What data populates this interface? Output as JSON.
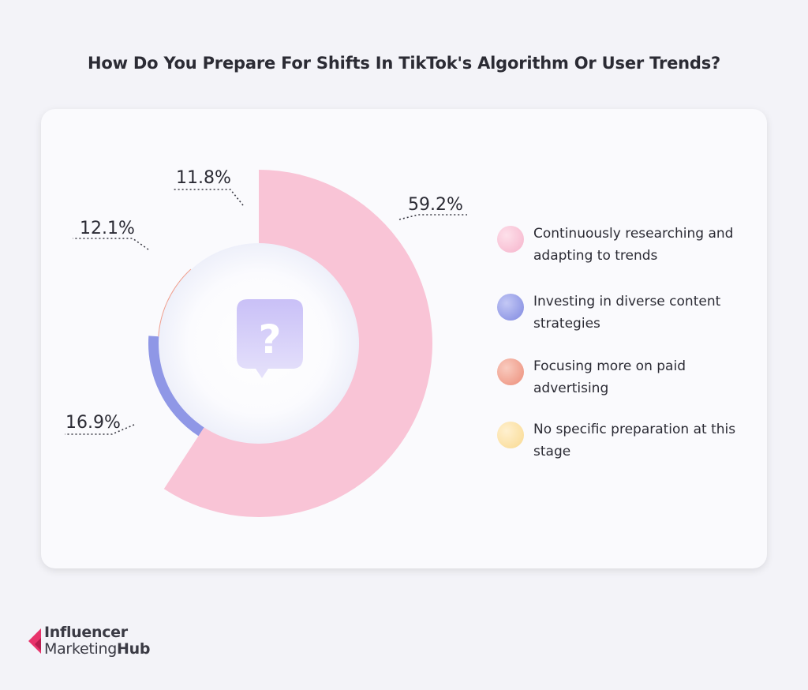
{
  "title": "How Do You Prepare For Shifts In TikTok's Algorithm Or User Trends?",
  "chart_data": {
    "type": "pie",
    "variant": "donut",
    "title": "How Do You Prepare For Shifts In TikTok's Algorithm Or User Trends?",
    "series": [
      {
        "name": "Continuously researching and adapting to trends",
        "value": 59.2,
        "label": "59.2%",
        "color": "#f9c4d6"
      },
      {
        "name": "Investing in diverse content strategies",
        "value": 16.9,
        "label": "16.9%",
        "color": "#8f97e6"
      },
      {
        "name": "Focusing more on paid advertising",
        "value": 12.1,
        "label": "12.1%",
        "color": "#f0a08f"
      },
      {
        "name": "No specific preparation at this stage",
        "value": 11.8,
        "label": "11.8%",
        "color": "#fbe0a6"
      }
    ],
    "center_icon": "question-mark-icon",
    "legend_position": "right"
  },
  "legend": [
    {
      "text": "Continuously researching and adapting to trends",
      "color": "#f9c4d6"
    },
    {
      "text": "Investing in diverse content strategies",
      "color": "#8f97e6"
    },
    {
      "text": "Focusing more on paid advertising",
      "color": "#f0a08f"
    },
    {
      "text": "No specific preparation at this stage",
      "color": "#fbe0a6"
    }
  ],
  "brand": {
    "line1": "Influencer",
    "line2_a": "Marketing",
    "line2_b": "Hub",
    "color": "#e8336b"
  }
}
